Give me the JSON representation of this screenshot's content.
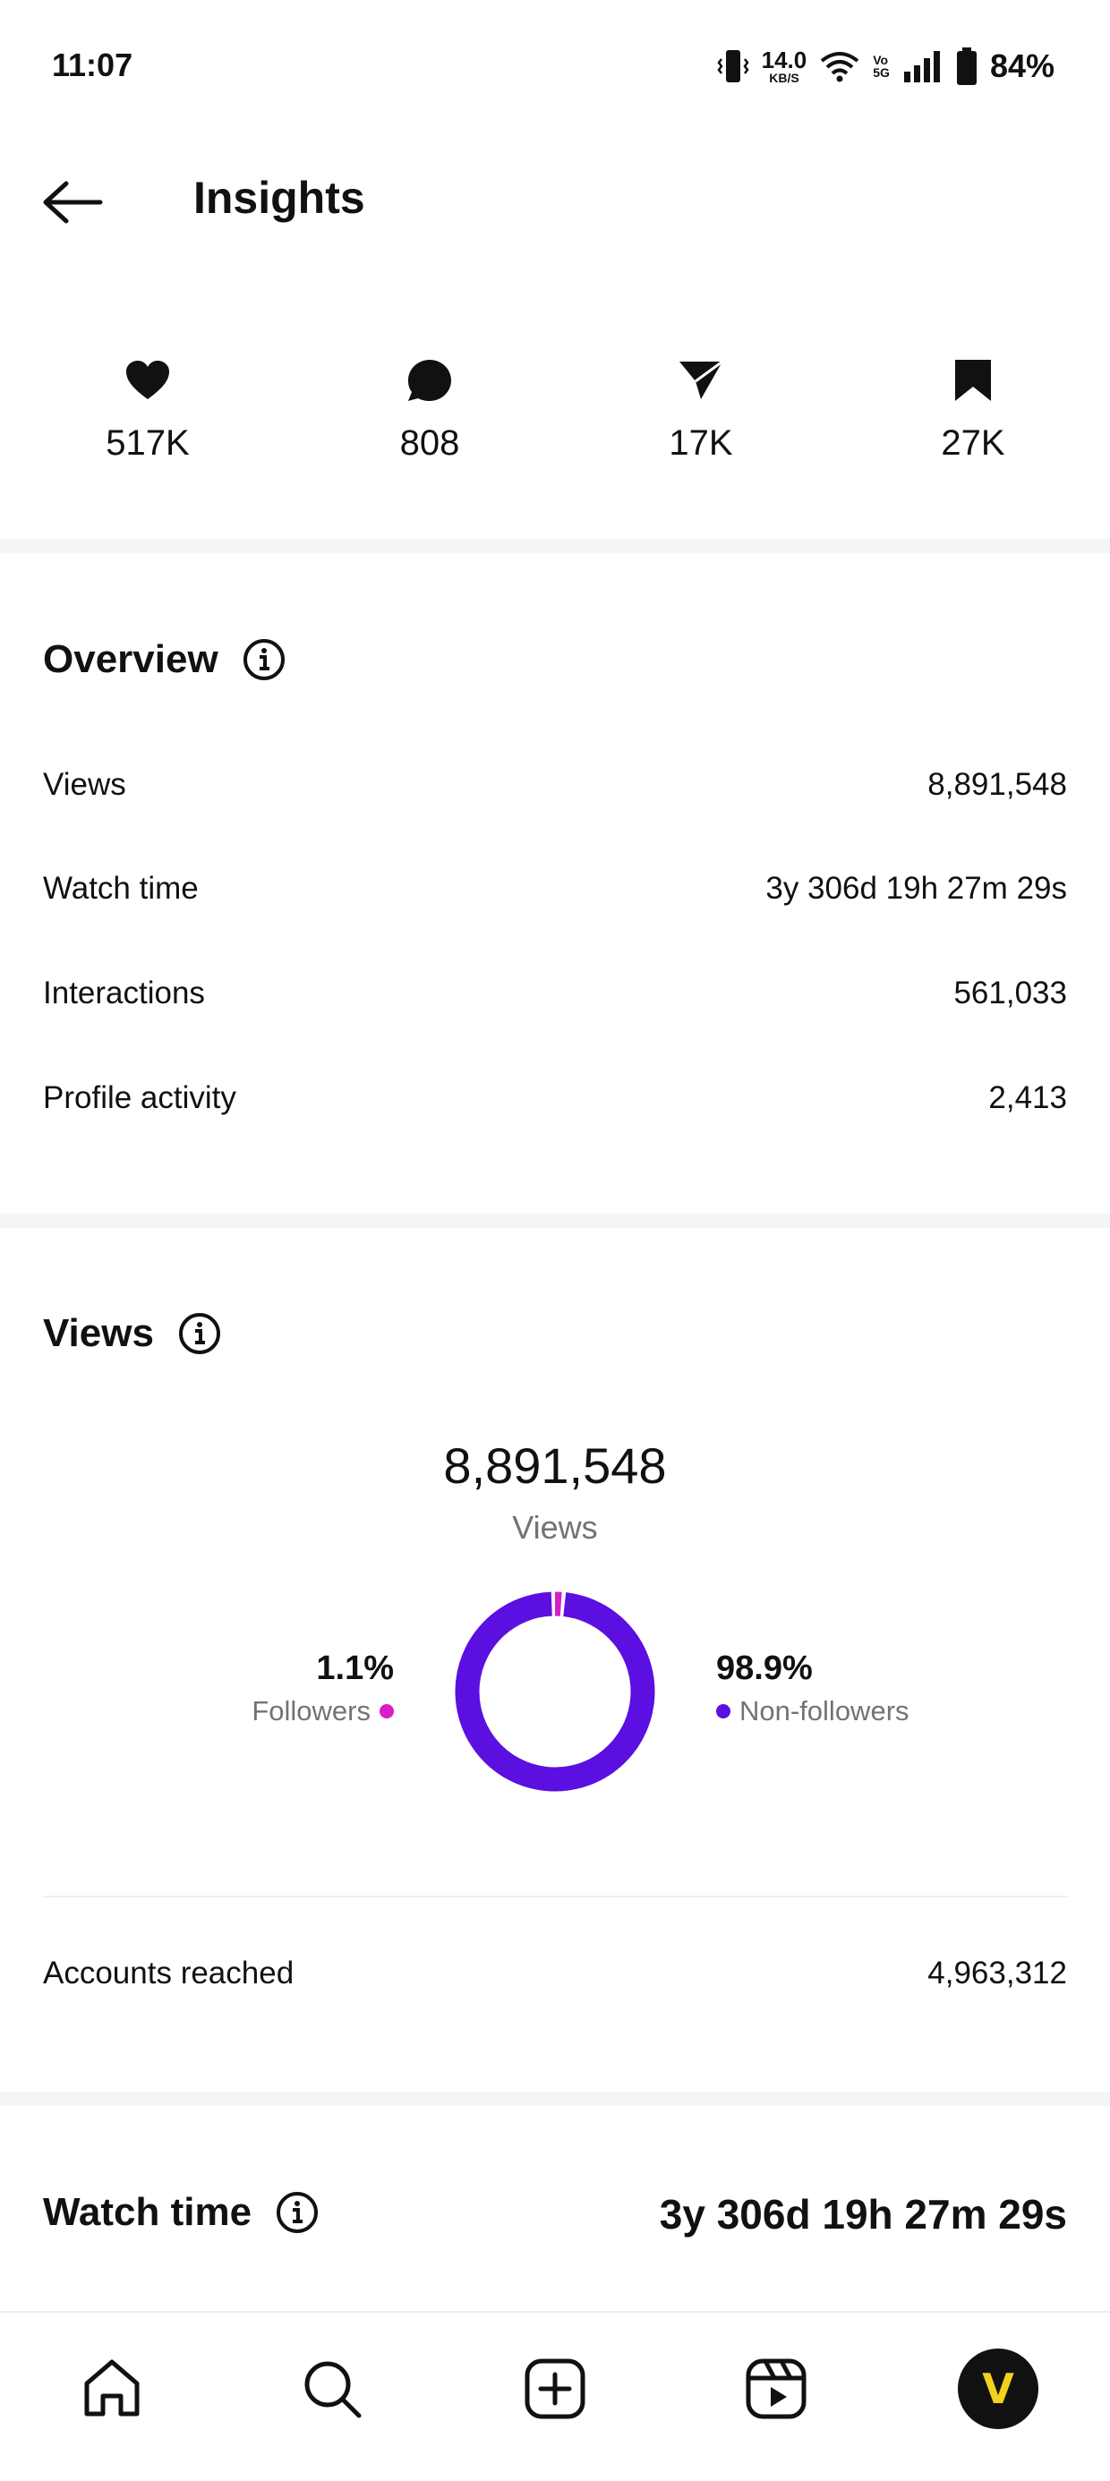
{
  "status_bar": {
    "time": "11:07",
    "net_speed_value": "14.0",
    "net_speed_unit": "KB/S",
    "volte_top": "Vo",
    "volte_bottom": "5G",
    "battery_percent": "84%"
  },
  "header": {
    "title": "Insights"
  },
  "stats": {
    "likes": "517K",
    "comments": "808",
    "shares": "17K",
    "saves": "27K"
  },
  "overview": {
    "title": "Overview",
    "rows": [
      {
        "label": "Views",
        "value": "8,891,548"
      },
      {
        "label": "Watch time",
        "value": "3y 306d 19h 27m 29s"
      },
      {
        "label": "Interactions",
        "value": "561,033"
      },
      {
        "label": "Profile activity",
        "value": "2,413"
      }
    ]
  },
  "views": {
    "title": "Views",
    "total": "8,891,548",
    "caption": "Views",
    "followers_pct": "1.1%",
    "followers_label": "Followers",
    "nonfollowers_pct": "98.9%",
    "nonfollowers_label": "Non-followers",
    "followers_fraction": 0.011,
    "nonfollowers_fraction": 0.989,
    "followers_color": "#d81ec4",
    "nonfollowers_color": "#5b0fe0",
    "accounts_reached_label": "Accounts reached",
    "accounts_reached_value": "4,963,312"
  },
  "watch_time": {
    "title": "Watch time",
    "value": "3y 306d 19h 27m 29s"
  },
  "bottom_nav": {
    "avatar_letter": "V"
  }
}
